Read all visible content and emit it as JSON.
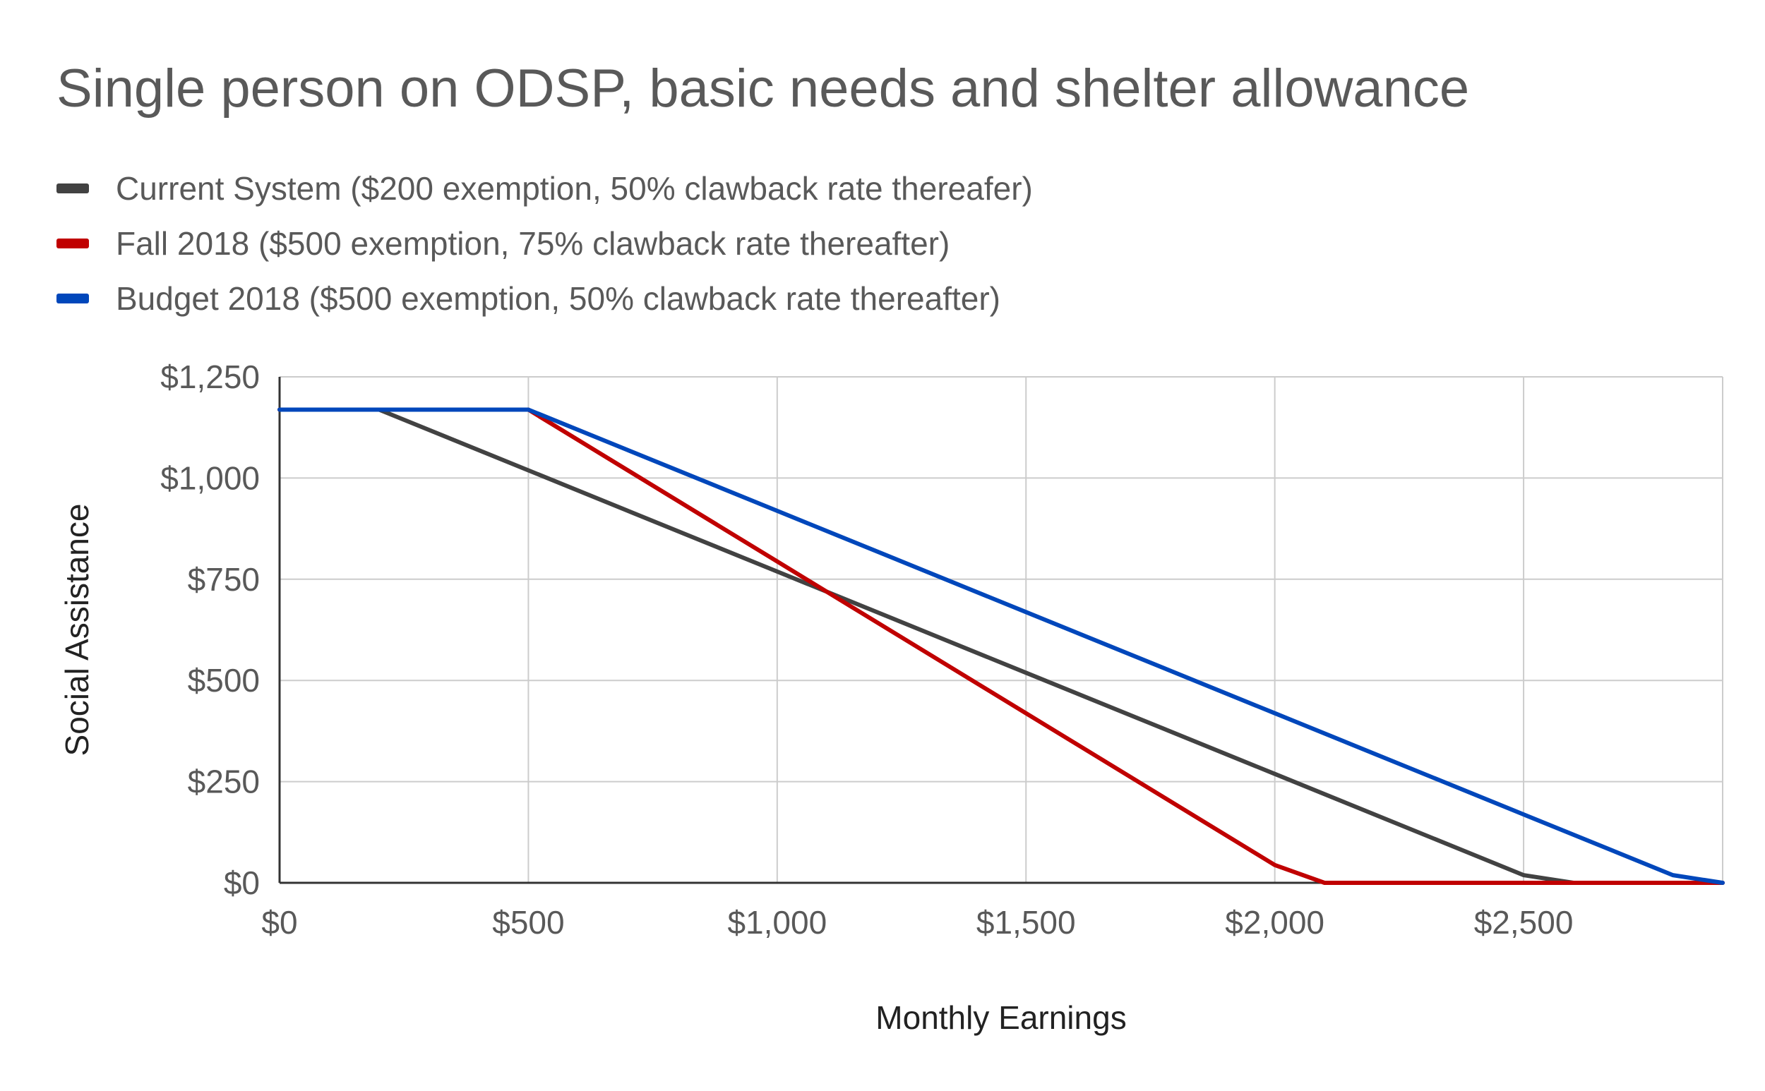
{
  "chart_data": {
    "type": "line",
    "title": "Single person on ODSP, basic needs and shelter allowance",
    "xlabel": "Monthly Earnings",
    "ylabel": "Social Assistance",
    "xlim": [
      0,
      2900
    ],
    "ylim": [
      0,
      1250
    ],
    "x_ticks": [
      0,
      500,
      1000,
      1500,
      2000,
      2500
    ],
    "x_tick_labels": [
      "$0",
      "$500",
      "$1,000",
      "$1,500",
      "$2,000",
      "$2,500"
    ],
    "y_ticks": [
      0,
      250,
      500,
      750,
      1000,
      1250
    ],
    "y_tick_labels": [
      "$0",
      "$250",
      "$500",
      "$750",
      "$1,000",
      "$1,250"
    ],
    "grid": true,
    "legend_position": "top-left",
    "series": [
      {
        "name": "Current System ($200 exemption, 50% clawback rate thereafer)",
        "color": "#424242",
        "points": [
          [
            0,
            1169
          ],
          [
            200,
            1169
          ],
          [
            500,
            1019
          ],
          [
            1000,
            769
          ],
          [
            1500,
            519
          ],
          [
            2000,
            269
          ],
          [
            2500,
            19
          ],
          [
            2600,
            0
          ],
          [
            2900,
            0
          ]
        ]
      },
      {
        "name": "Fall 2018 ($500 exemption, 75% clawback rate thereafter)",
        "color": "#c00000",
        "points": [
          [
            0,
            1169
          ],
          [
            500,
            1169
          ],
          [
            1000,
            794
          ],
          [
            1500,
            419
          ],
          [
            2000,
            44
          ],
          [
            2100,
            0
          ],
          [
            2900,
            0
          ]
        ]
      },
      {
        "name": "Budget 2018 ($500 exemption, 50% clawback rate thereafter)",
        "color": "#0047bb",
        "points": [
          [
            0,
            1169
          ],
          [
            500,
            1169
          ],
          [
            1000,
            919
          ],
          [
            1500,
            669
          ],
          [
            2000,
            419
          ],
          [
            2500,
            169
          ],
          [
            2800,
            19
          ],
          [
            2900,
            0
          ]
        ]
      }
    ]
  }
}
